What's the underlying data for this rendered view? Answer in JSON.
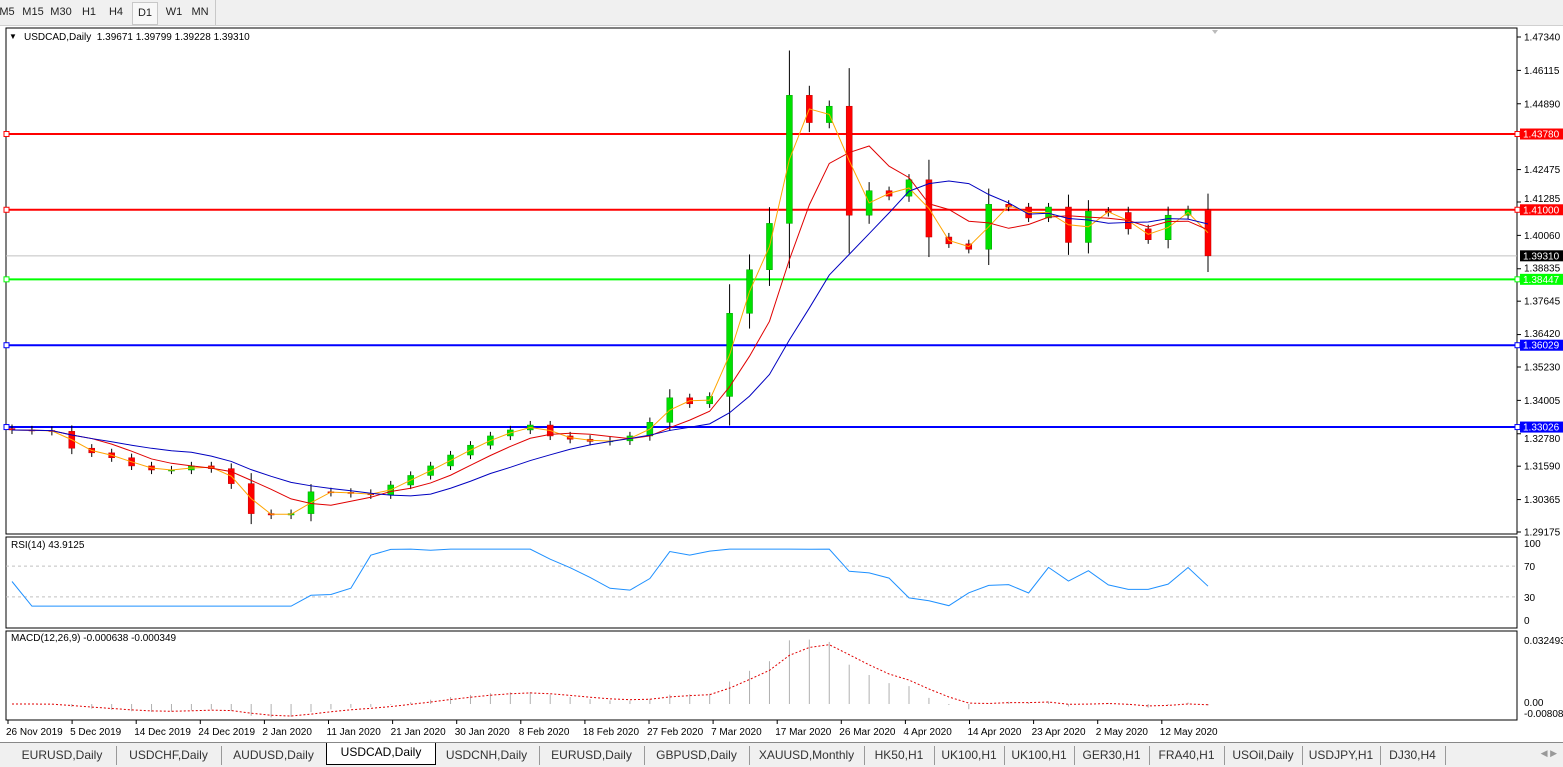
{
  "toolbar": {
    "timeframes": [
      "M5",
      "M15",
      "M30",
      "H1",
      "H4",
      "D1",
      "W1",
      "MN"
    ],
    "selected": "D1"
  },
  "chart": {
    "symbol_label": "USDCAD,Daily",
    "ohlc_label": "1.39671 1.39799 1.39228 1.39310",
    "rsi_label": "RSI(14) 43.9125",
    "macd_label": "MACD(12,26,9) -0.000638 -0.000349",
    "colors": {
      "up": "#00e000",
      "down": "#ff0000",
      "ma_fast": "#ffa500",
      "ma_mid": "#e00000",
      "ma_slow": "#0000c0",
      "rsi": "#1e90ff",
      "macd_signal": "#e00000",
      "macd_hist": "#b0b0b0"
    }
  },
  "chart_data": {
    "type": "candlestick",
    "title": "USDCAD,Daily",
    "x_tick_labels": [
      "26 Nov 2019",
      "5 Dec 2019",
      "14 Dec 2019",
      "24 Dec 2019",
      "2 Jan 2020",
      "11 Jan 2020",
      "21 Jan 2020",
      "30 Jan 2020",
      "8 Feb 2020",
      "18 Feb 2020",
      "27 Feb 2020",
      "7 Mar 2020",
      "17 Mar 2020",
      "26 Mar 2020",
      "4 Apr 2020",
      "14 Apr 2020",
      "23 Apr 2020",
      "2 May 2020",
      "12 May 2020"
    ],
    "y_tick_labels": [
      "1.47340",
      "1.46115",
      "1.44890",
      "1.42475",
      "1.41285",
      "1.40060",
      "1.38835",
      "1.37645",
      "1.36420",
      "1.35230",
      "1.34005",
      "1.32780",
      "1.31590",
      "1.30365",
      "1.29175"
    ],
    "ylim": [
      1.29175,
      1.4734
    ],
    "close": [
      1.3292,
      1.329,
      1.3287,
      1.3225,
      1.3208,
      1.319,
      1.316,
      1.3145,
      1.3145,
      1.316,
      1.315,
      1.3095,
      1.2985,
      1.298,
      1.2985,
      1.3065,
      1.3063,
      1.3059,
      1.3054,
      1.309,
      1.3125,
      1.316,
      1.32,
      1.3236,
      1.327,
      1.3292,
      1.331,
      1.327,
      1.3258,
      1.325,
      1.3252,
      1.327,
      1.332,
      1.341,
      1.3388,
      1.3415,
      1.372,
      1.388,
      1.405,
      1.452,
      1.442,
      1.448,
      1.408,
      1.417,
      1.415,
      1.421,
      1.4,
      1.3975,
      1.3955,
      1.412,
      1.411,
      1.407,
      1.411,
      1.398,
      1.4095,
      1.409,
      1.403,
      1.399,
      1.408,
      1.41,
      1.3931
    ],
    "horizontal_lines": [
      {
        "price": "1.43780",
        "color": "#ff0000"
      },
      {
        "price": "1.41000",
        "color": "#ff0000"
      },
      {
        "price": "1.38447",
        "color": "#00ff00"
      },
      {
        "price": "1.36029",
        "color": "#0000ff"
      },
      {
        "price": "1.33026",
        "color": "#0000ff"
      }
    ],
    "current_price": "1.39310",
    "rsi": {
      "levels": [
        "100",
        "70",
        "30",
        "0"
      ],
      "value": 43.9125
    },
    "macd": {
      "ticks": [
        "0.032493",
        "0.00",
        "-0.00808"
      ],
      "main": -0.000638,
      "signal": -0.000349
    }
  },
  "tabs": {
    "items": [
      "EURUSD,Daily",
      "USDCHF,Daily",
      "AUDUSD,Daily",
      "USDCAD,Daily",
      "USDCNH,Daily",
      "EURUSD,Daily",
      "GBPUSD,Daily",
      "XAUUSD,Monthly",
      "HK50,H1",
      "UK100,H1",
      "UK100,H1",
      "GER30,H1",
      "FRA40,H1",
      "USOil,Daily",
      "USDJPY,H1",
      "DJ30,H4"
    ],
    "active": "USDCAD,Daily"
  }
}
